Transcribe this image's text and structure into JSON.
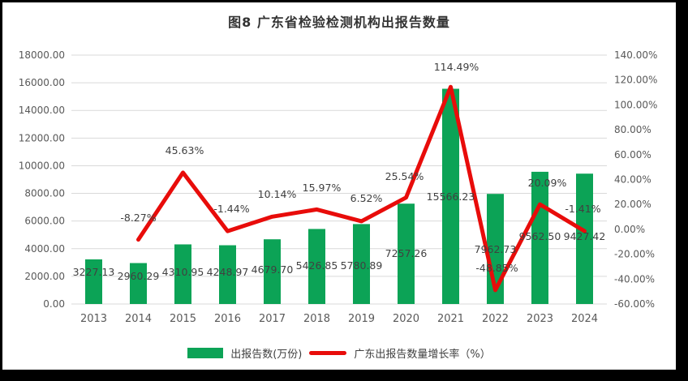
{
  "chart_data": {
    "type": "combo",
    "title": "图8  广东省检验检测机构出报告数量",
    "categories": [
      "2013",
      "2014",
      "2015",
      "2016",
      "2017",
      "2018",
      "2019",
      "2020",
      "2021",
      "2022",
      "2023",
      "2024"
    ],
    "series": [
      {
        "name": "出报告数(万份)",
        "type": "bar",
        "axis": "left",
        "color": "#0CA356",
        "values": [
          3227.13,
          2960.29,
          4310.95,
          4248.97,
          4679.7,
          5426.85,
          5780.89,
          7257.26,
          15566.23,
          7962.73,
          9562.5,
          9427.42
        ],
        "labels": [
          "3227.13",
          "2960.29",
          "4310.95",
          "4248.97",
          "4679.70",
          "5426.85",
          "5780.89",
          "7257.26",
          "15566.23",
          "7962.73",
          "9562.50",
          "9427.42"
        ]
      },
      {
        "name": "广东出报告数量增长率（%）",
        "type": "line",
        "axis": "right",
        "color": "#E80C0A",
        "values": [
          null,
          -8.27,
          45.63,
          -1.44,
          10.14,
          15.97,
          6.52,
          25.54,
          114.49,
          -48.85,
          20.09,
          -1.41
        ],
        "labels": [
          "",
          "-8.27%",
          "45.63%",
          "-1.44%",
          "10.14%",
          "15.97%",
          "6.52%",
          "25.54%",
          "114.49%",
          "-48.85%",
          "20.09%",
          "-1.41%"
        ]
      }
    ],
    "left_axis": {
      "min": 0,
      "max": 18000,
      "step": 2000,
      "ticks": [
        "0.00",
        "2000.00",
        "4000.00",
        "6000.00",
        "8000.00",
        "10000.00",
        "12000.00",
        "14000.00",
        "16000.00",
        "18000.00"
      ]
    },
    "right_axis": {
      "min": -60,
      "max": 140,
      "step": 20,
      "ticks": [
        "-60.00%",
        "-40.00%",
        "-20.00%",
        "0.00%",
        "20.00%",
        "40.00%",
        "60.00%",
        "80.00%",
        "100.00%",
        "120.00%",
        "140.00%"
      ]
    },
    "grid": true,
    "gridline_color": "#d9d9d9",
    "axis_text_color": "#595959",
    "label_text_color": "#404040",
    "legend_position": "bottom"
  }
}
